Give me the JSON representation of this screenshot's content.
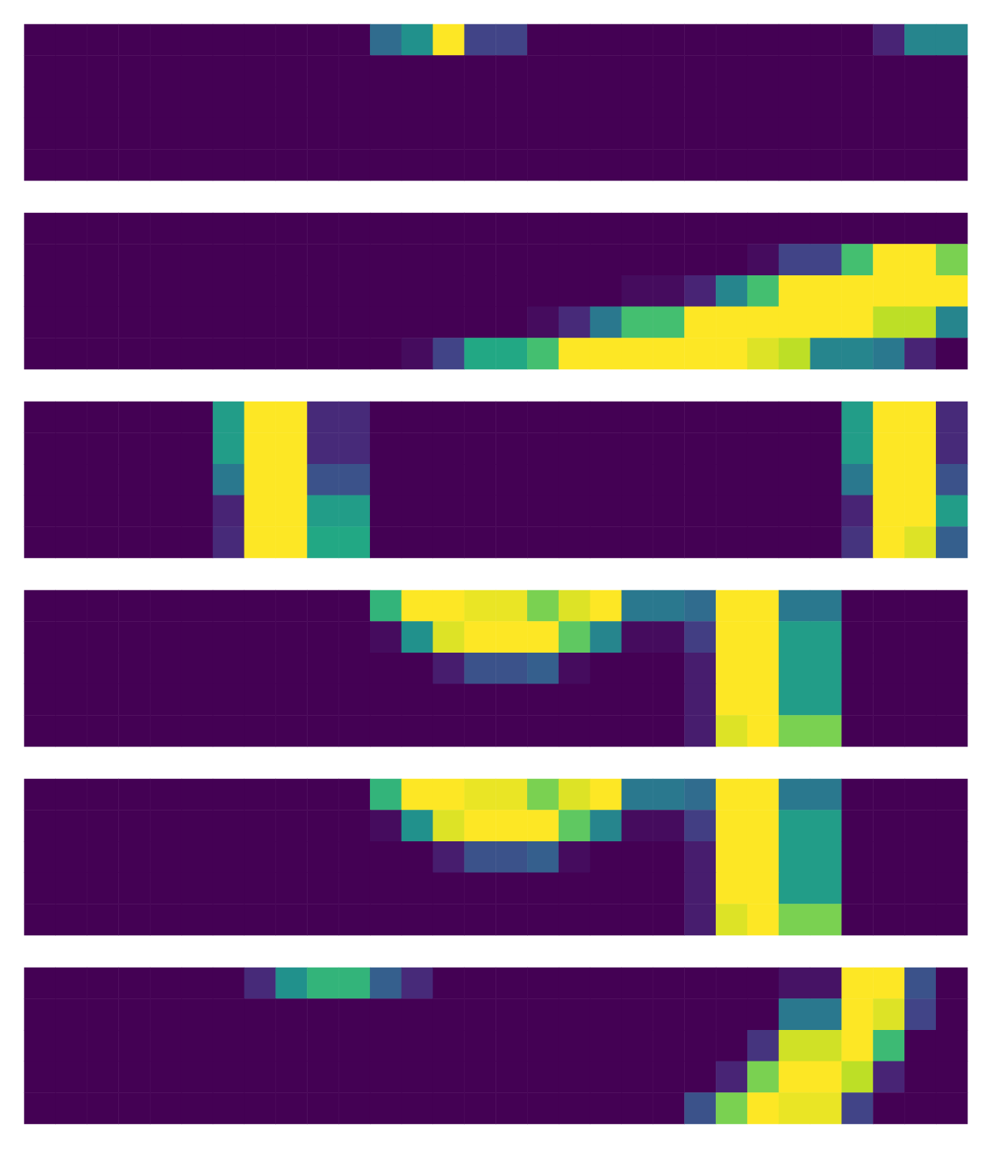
{
  "chart_data": [
    {
      "type": "heatmap",
      "tick_labels": false,
      "zlim": [
        0,
        1
      ],
      "cells": [
        [
          0,
          0,
          0,
          0,
          0,
          0,
          0,
          0,
          0,
          0,
          0,
          0.35,
          0.5,
          1,
          0.2,
          0.2,
          0,
          0,
          0,
          0,
          0,
          0,
          0,
          0,
          0,
          0,
          0,
          0.1,
          0.45,
          0.45
        ],
        [
          0,
          0,
          0,
          0,
          0,
          0,
          0,
          0,
          0,
          0,
          0,
          0,
          0,
          0,
          0,
          0,
          0,
          0,
          0,
          0,
          0,
          0,
          0,
          0,
          0,
          0,
          0,
          0,
          0,
          0
        ],
        [
          0,
          0,
          0,
          0,
          0,
          0,
          0,
          0,
          0,
          0,
          0,
          0,
          0,
          0,
          0,
          0,
          0,
          0,
          0,
          0,
          0,
          0,
          0,
          0,
          0,
          0,
          0,
          0,
          0,
          0
        ],
        [
          0,
          0,
          0,
          0,
          0,
          0,
          0,
          0,
          0,
          0,
          0,
          0,
          0,
          0,
          0,
          0,
          0,
          0,
          0,
          0,
          0,
          0,
          0,
          0,
          0,
          0,
          0,
          0,
          0,
          0
        ],
        [
          0,
          0,
          0,
          0,
          0,
          0,
          0,
          0,
          0,
          0,
          0,
          0,
          0,
          0,
          0,
          0,
          0,
          0,
          0,
          0,
          0,
          0,
          0,
          0,
          0,
          0,
          0,
          0,
          0,
          0
        ]
      ]
    },
    {
      "type": "heatmap",
      "tick_labels": false,
      "zlim": [
        0,
        1
      ],
      "cells": [
        [
          0,
          0,
          0,
          0,
          0,
          0,
          0,
          0,
          0,
          0,
          0,
          0,
          0,
          0,
          0,
          0,
          0,
          0,
          0,
          0,
          0,
          0,
          0,
          0,
          0,
          0,
          0,
          0,
          0,
          0
        ],
        [
          0,
          0,
          0,
          0,
          0,
          0,
          0,
          0,
          0,
          0,
          0,
          0,
          0,
          0,
          0,
          0,
          0,
          0,
          0,
          0,
          0,
          0,
          0,
          0.03,
          0.2,
          0.2,
          0.7,
          1,
          1,
          0.8
        ],
        [
          0,
          0,
          0,
          0,
          0,
          0,
          0,
          0,
          0,
          0,
          0,
          0,
          0,
          0,
          0,
          0,
          0,
          0,
          0,
          0.03,
          0.03,
          0.1,
          0.45,
          0.7,
          1,
          1,
          1,
          1,
          1,
          1
        ],
        [
          0,
          0,
          0,
          0,
          0,
          0,
          0,
          0,
          0,
          0,
          0,
          0,
          0,
          0,
          0,
          0,
          0.03,
          0.12,
          0.4,
          0.7,
          0.7,
          1,
          1,
          1,
          1,
          1,
          1,
          0.9,
          0.9,
          0.45
        ],
        [
          0,
          0,
          0,
          0,
          0,
          0,
          0,
          0,
          0,
          0,
          0,
          0,
          0.03,
          0.2,
          0.6,
          0.6,
          0.7,
          1,
          1,
          1,
          1,
          1,
          1,
          0.95,
          0.9,
          0.45,
          0.45,
          0.4,
          0.1,
          0
        ]
      ]
    },
    {
      "type": "heatmap",
      "tick_labels": false,
      "zlim": [
        0,
        1
      ],
      "cells": [
        [
          0,
          0,
          0,
          0,
          0,
          0,
          0.55,
          1,
          1,
          0.12,
          0.12,
          0,
          0,
          0,
          0,
          0,
          0,
          0,
          0,
          0,
          0,
          0,
          0,
          0,
          0,
          0,
          0.55,
          1,
          1,
          0.12
        ],
        [
          0,
          0,
          0,
          0,
          0,
          0,
          0.55,
          1,
          1,
          0.12,
          0.12,
          0,
          0,
          0,
          0,
          0,
          0,
          0,
          0,
          0,
          0,
          0,
          0,
          0,
          0,
          0,
          0.55,
          1,
          1,
          0.12
        ],
        [
          0,
          0,
          0,
          0,
          0,
          0,
          0.4,
          1,
          1,
          0.25,
          0.25,
          0,
          0,
          0,
          0,
          0,
          0,
          0,
          0,
          0,
          0,
          0,
          0,
          0,
          0,
          0,
          0.4,
          1,
          1,
          0.25
        ],
        [
          0,
          0,
          0,
          0,
          0,
          0,
          0.1,
          1,
          1,
          0.55,
          0.55,
          0,
          0,
          0,
          0,
          0,
          0,
          0,
          0,
          0,
          0,
          0,
          0,
          0,
          0,
          0,
          0.1,
          1,
          1,
          0.55
        ],
        [
          0,
          0,
          0,
          0,
          0,
          0,
          0.12,
          1,
          1,
          0.6,
          0.6,
          0,
          0,
          0,
          0,
          0,
          0,
          0,
          0,
          0,
          0,
          0,
          0,
          0,
          0,
          0,
          0.15,
          1,
          0.95,
          0.3
        ]
      ]
    },
    {
      "type": "heatmap",
      "tick_labels": false,
      "zlim": [
        0,
        1
      ],
      "cells": [
        [
          0,
          0,
          0,
          0,
          0,
          0,
          0,
          0,
          0,
          0,
          0,
          0.65,
          1,
          1,
          0.97,
          0.97,
          0.8,
          0.95,
          1,
          0.4,
          0.4,
          0.35,
          1,
          1,
          0.4,
          0.4,
          0,
          0,
          0,
          0
        ],
        [
          0,
          0,
          0,
          0,
          0,
          0,
          0,
          0,
          0,
          0,
          0,
          0.03,
          0.5,
          0.95,
          1,
          1,
          1,
          0.75,
          0.45,
          0.03,
          0.03,
          0.18,
          1,
          1,
          0.55,
          0.55,
          0,
          0,
          0,
          0
        ],
        [
          0,
          0,
          0,
          0,
          0,
          0,
          0,
          0,
          0,
          0,
          0,
          0,
          0,
          0.08,
          0.25,
          0.25,
          0.3,
          0.03,
          0,
          0,
          0,
          0.08,
          1,
          1,
          0.55,
          0.55,
          0,
          0,
          0,
          0
        ],
        [
          0,
          0,
          0,
          0,
          0,
          0,
          0,
          0,
          0,
          0,
          0,
          0,
          0,
          0,
          0,
          0,
          0,
          0,
          0,
          0,
          0,
          0.08,
          1,
          1,
          0.55,
          0.55,
          0,
          0,
          0,
          0
        ],
        [
          0,
          0,
          0,
          0,
          0,
          0,
          0,
          0,
          0,
          0,
          0,
          0,
          0,
          0,
          0,
          0,
          0,
          0,
          0,
          0,
          0,
          0.08,
          0.95,
          1,
          0.8,
          0.8,
          0,
          0,
          0,
          0
        ]
      ]
    },
    {
      "type": "heatmap",
      "tick_labels": false,
      "zlim": [
        0,
        1
      ],
      "cells": [
        [
          0,
          0,
          0,
          0,
          0,
          0,
          0,
          0,
          0,
          0,
          0,
          0.65,
          1,
          1,
          0.97,
          0.97,
          0.8,
          0.95,
          1,
          0.4,
          0.4,
          0.35,
          1,
          1,
          0.4,
          0.4,
          0,
          0,
          0,
          0
        ],
        [
          0,
          0,
          0,
          0,
          0,
          0,
          0,
          0,
          0,
          0,
          0,
          0.03,
          0.5,
          0.95,
          1,
          1,
          1,
          0.75,
          0.45,
          0.03,
          0.03,
          0.18,
          1,
          1,
          0.55,
          0.55,
          0,
          0,
          0,
          0
        ],
        [
          0,
          0,
          0,
          0,
          0,
          0,
          0,
          0,
          0,
          0,
          0,
          0,
          0,
          0.08,
          0.25,
          0.25,
          0.3,
          0.03,
          0,
          0,
          0,
          0.08,
          1,
          1,
          0.55,
          0.55,
          0,
          0,
          0,
          0
        ],
        [
          0,
          0,
          0,
          0,
          0,
          0,
          0,
          0,
          0,
          0,
          0,
          0,
          0,
          0,
          0,
          0,
          0,
          0,
          0,
          0,
          0,
          0.08,
          1,
          1,
          0.55,
          0.55,
          0,
          0,
          0,
          0
        ],
        [
          0,
          0,
          0,
          0,
          0,
          0,
          0,
          0,
          0,
          0,
          0,
          0,
          0,
          0,
          0,
          0,
          0,
          0,
          0,
          0,
          0,
          0.08,
          0.95,
          1,
          0.8,
          0.8,
          0,
          0,
          0,
          0
        ]
      ]
    },
    {
      "type": "heatmap",
      "tick_labels": false,
      "zlim": [
        0,
        1
      ],
      "cells": [
        [
          0,
          0,
          0,
          0,
          0,
          0,
          0,
          0.12,
          0.5,
          0.65,
          0.65,
          0.3,
          0.12,
          0,
          0,
          0,
          0,
          0,
          0,
          0,
          0,
          0,
          0,
          0,
          0.05,
          0.05,
          1,
          1,
          0.25,
          0
        ],
        [
          0,
          0,
          0,
          0,
          0,
          0,
          0,
          0,
          0,
          0,
          0,
          0,
          0,
          0,
          0,
          0,
          0,
          0,
          0,
          0,
          0,
          0,
          0,
          0,
          0.4,
          0.4,
          1,
          0.95,
          0.2,
          0
        ],
        [
          0,
          0,
          0,
          0,
          0,
          0,
          0,
          0,
          0,
          0,
          0,
          0,
          0,
          0,
          0,
          0,
          0,
          0,
          0,
          0,
          0,
          0,
          0,
          0.15,
          0.93,
          0.93,
          1,
          0.68,
          0,
          0
        ],
        [
          0,
          0,
          0,
          0,
          0,
          0,
          0,
          0,
          0,
          0,
          0,
          0,
          0,
          0,
          0,
          0,
          0,
          0,
          0,
          0,
          0,
          0,
          0.1,
          0.8,
          1,
          1,
          0.9,
          0.1,
          0,
          0
        ],
        [
          0,
          0,
          0,
          0,
          0,
          0,
          0,
          0,
          0,
          0,
          0,
          0,
          0,
          0,
          0,
          0,
          0,
          0,
          0,
          0,
          0,
          0.25,
          0.8,
          1,
          0.97,
          0.97,
          0.2,
          0,
          0,
          0
        ]
      ]
    }
  ]
}
